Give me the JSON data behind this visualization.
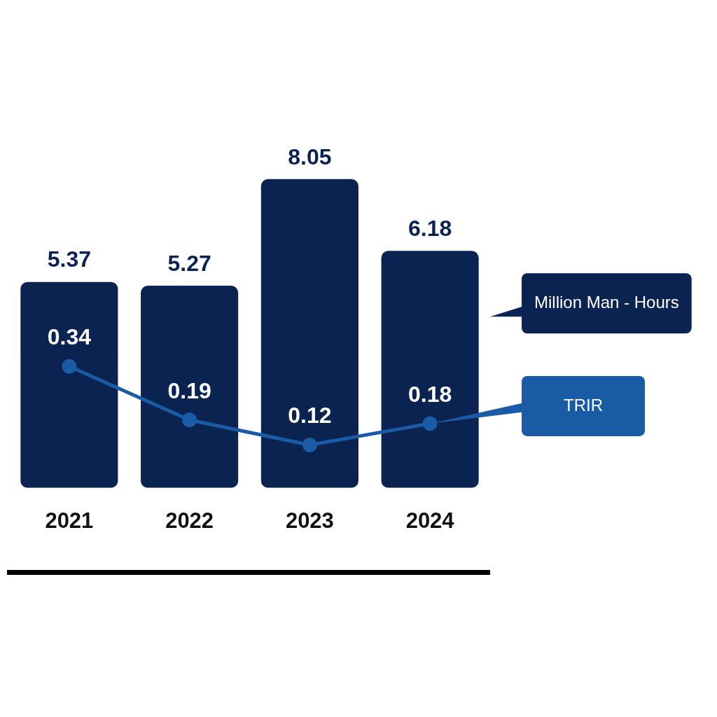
{
  "chart_data": {
    "type": "bar",
    "categories": [
      "2021",
      "2022",
      "2023",
      "2024"
    ],
    "series": [
      {
        "name": "Million Man - Hours",
        "color": "#0b2350",
        "values": [
          5.37,
          5.27,
          8.05,
          6.18
        ]
      },
      {
        "name": "TRIR",
        "type": "line",
        "axis": "y2",
        "color": "#1a5ba6",
        "values": [
          0.34,
          0.19,
          0.12,
          0.18
        ]
      }
    ],
    "data_labels": true,
    "marker": "circle",
    "grid": false
  }
}
